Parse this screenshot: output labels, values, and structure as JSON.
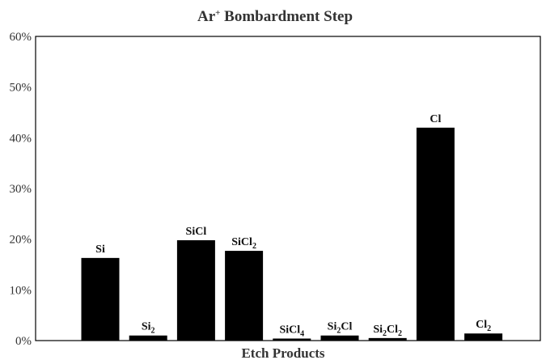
{
  "chart_data": {
    "type": "bar",
    "title": {
      "base": "Ar",
      "sup": "+",
      "rest": " Bombardment Step"
    },
    "xlabel": "Etch Products",
    "ylabel": "",
    "ylim": [
      0,
      60
    ],
    "yticks": [
      "0%",
      "10%",
      "20%",
      "30%",
      "40%",
      "50%",
      "60%"
    ],
    "grid": false,
    "bar_color": "#000000",
    "categories": [
      {
        "label": "Si",
        "parts": [
          [
            "Si",
            ""
          ]
        ]
      },
      {
        "label": "Si2",
        "parts": [
          [
            "Si",
            ""
          ],
          [
            "2",
            "sub"
          ]
        ]
      },
      {
        "label": "SiCl",
        "parts": [
          [
            "SiCl",
            ""
          ]
        ]
      },
      {
        "label": "SiCl2",
        "parts": [
          [
            "SiCl",
            ""
          ],
          [
            "2",
            "sub"
          ]
        ]
      },
      {
        "label": "SiCl4",
        "parts": [
          [
            "SiCl",
            ""
          ],
          [
            "4",
            "sub"
          ]
        ]
      },
      {
        "label": "Si2Cl",
        "parts": [
          [
            "Si",
            ""
          ],
          [
            "2",
            "sub"
          ],
          [
            "Cl",
            ""
          ]
        ]
      },
      {
        "label": "Si2Cl2",
        "parts": [
          [
            "Si",
            ""
          ],
          [
            "2",
            "sub"
          ],
          [
            "Cl",
            ""
          ],
          [
            "2",
            "sub"
          ]
        ]
      },
      {
        "label": "Cl",
        "parts": [
          [
            "Cl",
            ""
          ]
        ]
      },
      {
        "label": "Cl2",
        "parts": [
          [
            "Cl",
            ""
          ],
          [
            "2",
            "sub"
          ]
        ]
      }
    ],
    "values": [
      16.3,
      1.0,
      19.8,
      17.7,
      0.4,
      1.0,
      0.5,
      42.0,
      1.4
    ]
  }
}
